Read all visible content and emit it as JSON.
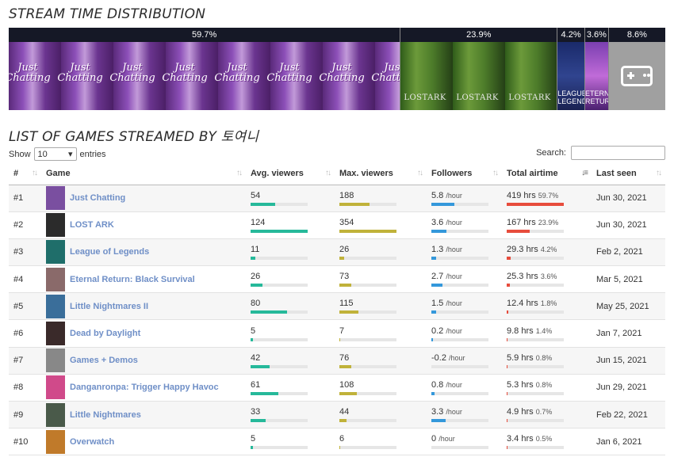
{
  "distribution": {
    "title": "STREAM TIME DISTRIBUTION",
    "segments": [
      {
        "pct": "59.7%",
        "kind": "jc",
        "width": 59.7,
        "label": "Just Chatting"
      },
      {
        "pct": "23.9%",
        "kind": "la",
        "width": 23.9,
        "label": "LOSTARK"
      },
      {
        "pct": "4.2%",
        "kind": "lol",
        "width": 4.2,
        "label": "LEAGUE LEGEND"
      },
      {
        "pct": "3.6%",
        "kind": "er",
        "width": 3.6,
        "label": "ETERNAL RETURN"
      },
      {
        "pct": "8.6%",
        "kind": "gd",
        "width": 8.6,
        "label": ""
      }
    ]
  },
  "list": {
    "title": "LIST OF GAMES STREAMED BY 토여니",
    "show_label": "Show",
    "entries_value": "10",
    "entries_label": "entries",
    "search_label": "Search:"
  },
  "columns": [
    "#",
    "Game",
    "Avg. viewers",
    "Max. viewers",
    "Followers",
    "Total airtime",
    "Last seen"
  ],
  "units": {
    "per_hour": "/hour",
    "hrs": "hrs"
  },
  "colors": {
    "avg": "#26b99a",
    "max": "#c0b23a",
    "followers": "#3498db",
    "airtime": "#e74c3c",
    "link": "#6f8fc7"
  },
  "rows": [
    {
      "rank": "#1",
      "game": "Just Chatting",
      "thumb": "#7a4fa0",
      "avg": "54",
      "avg_frac": 0.435,
      "max": "188",
      "max_frac": 0.53,
      "followers": "5.8",
      "fol_frac": 0.4,
      "airtime": "419",
      "air_pct": "59.7%",
      "air_frac": 1.0,
      "last": "Jun 30, 2021"
    },
    {
      "rank": "#2",
      "game": "LOST ARK",
      "thumb": "#2b2b2b",
      "avg": "124",
      "avg_frac": 1.0,
      "max": "354",
      "max_frac": 1.0,
      "followers": "3.6",
      "fol_frac": 0.27,
      "airtime": "167",
      "air_pct": "23.9%",
      "air_frac": 0.4,
      "last": "Jun 30, 2021"
    },
    {
      "rank": "#3",
      "game": "League of Legends",
      "thumb": "#1f6e6a",
      "avg": "11",
      "avg_frac": 0.09,
      "max": "26",
      "max_frac": 0.08,
      "followers": "1.3",
      "fol_frac": 0.08,
      "airtime": "29.3",
      "air_pct": "4.2%",
      "air_frac": 0.07,
      "last": "Feb 2, 2021"
    },
    {
      "rank": "#4",
      "game": "Eternal Return: Black Survival",
      "thumb": "#8a6a6a",
      "avg": "26",
      "avg_frac": 0.21,
      "max": "73",
      "max_frac": 0.21,
      "followers": "2.7",
      "fol_frac": 0.2,
      "airtime": "25.3",
      "air_pct": "3.6%",
      "air_frac": 0.06,
      "last": "Mar 5, 2021"
    },
    {
      "rank": "#5",
      "game": "Little Nightmares II",
      "thumb": "#3a6e9a",
      "avg": "80",
      "avg_frac": 0.645,
      "max": "115",
      "max_frac": 0.33,
      "followers": "1.5",
      "fol_frac": 0.09,
      "airtime": "12.4",
      "air_pct": "1.8%",
      "air_frac": 0.03,
      "last": "May 25, 2021"
    },
    {
      "rank": "#6",
      "game": "Dead by Daylight",
      "thumb": "#3a2a2a",
      "avg": "5",
      "avg_frac": 0.04,
      "max": "7",
      "max_frac": 0.02,
      "followers": "0.2",
      "fol_frac": 0.03,
      "airtime": "9.8",
      "air_pct": "1.4%",
      "air_frac": 0.02,
      "last": "Jan 7, 2021"
    },
    {
      "rank": "#7",
      "game": "Games + Demos",
      "thumb": "#888888",
      "avg": "42",
      "avg_frac": 0.34,
      "max": "76",
      "max_frac": 0.215,
      "followers": "-0.2",
      "fol_frac": 0.0,
      "airtime": "5.9",
      "air_pct": "0.8%",
      "air_frac": 0.015,
      "last": "Jun 15, 2021"
    },
    {
      "rank": "#8",
      "game": "Danganronpa: Trigger Happy Havoc",
      "thumb": "#d04a8a",
      "avg": "61",
      "avg_frac": 0.49,
      "max": "108",
      "max_frac": 0.305,
      "followers": "0.8",
      "fol_frac": 0.05,
      "airtime": "5.3",
      "air_pct": "0.8%",
      "air_frac": 0.013,
      "last": "Jun 29, 2021"
    },
    {
      "rank": "#9",
      "game": "Little Nightmares",
      "thumb": "#4a5a4a",
      "avg": "33",
      "avg_frac": 0.265,
      "max": "44",
      "max_frac": 0.125,
      "followers": "3.3",
      "fol_frac": 0.25,
      "airtime": "4.9",
      "air_pct": "0.7%",
      "air_frac": 0.012,
      "last": "Feb 22, 2021"
    },
    {
      "rank": "#10",
      "game": "Overwatch",
      "thumb": "#c07a2a",
      "avg": "5",
      "avg_frac": 0.04,
      "max": "6",
      "max_frac": 0.017,
      "followers": "0",
      "fol_frac": 0.0,
      "airtime": "3.4",
      "air_pct": "0.5%",
      "air_frac": 0.008,
      "last": "Jan 6, 2021"
    }
  ]
}
